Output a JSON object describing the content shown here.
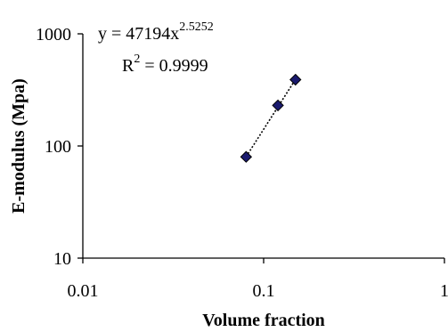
{
  "chart_data": {
    "type": "scatter",
    "xlabel": "Volume fraction",
    "ylabel": "E-modulus (Mpa)",
    "x_scale": "log",
    "y_scale": "log",
    "xlim": [
      0.01,
      1
    ],
    "ylim": [
      10,
      1000
    ],
    "x_ticks": [
      "0.01",
      "0.1",
      "1"
    ],
    "y_ticks": [
      "1000",
      "100",
      "10"
    ],
    "grid": false,
    "series": [
      {
        "marker": "diamond",
        "color": "#1a1a6e",
        "points": [
          {
            "x": 0.08,
            "y": 80
          },
          {
            "x": 0.12,
            "y": 230
          },
          {
            "x": 0.15,
            "y": 390
          }
        ]
      }
    ],
    "trendline": {
      "type": "power",
      "style": "dotted",
      "coefficient": 47194,
      "exponent": 2.5252,
      "x_range": [
        0.08,
        0.15
      ],
      "equation": {
        "prefix": "y = 47194x",
        "exponent_label": "2.5252"
      },
      "r_squared": {
        "base": "R",
        "power": "2",
        "value_text": " = 0.9999"
      }
    }
  }
}
